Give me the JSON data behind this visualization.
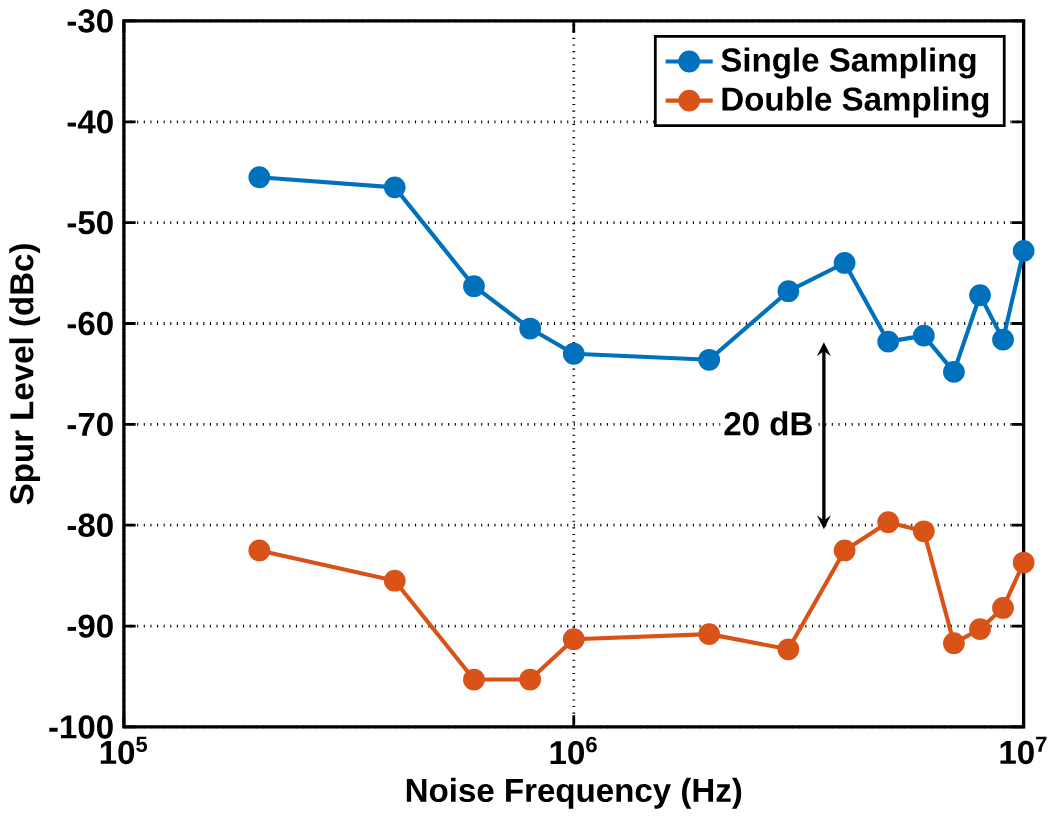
{
  "chart_data": {
    "type": "line",
    "xlabel": "Noise Frequency (Hz)",
    "ylabel": "Spur Level (dBc)",
    "log": "x",
    "x": [
      200000,
      400000,
      600000,
      800000,
      1000000,
      2000000,
      3000000,
      4000000,
      5000000,
      6000000,
      7000000,
      8000000,
      9000000,
      10000000
    ],
    "series": [
      {
        "name": "Single Sampling",
        "color": "#0072bd",
        "values": [
          -45.5,
          -46.5,
          -56.3,
          -60.5,
          -63,
          -63.6,
          -56.8,
          -54,
          -61.8,
          -61.2,
          -64.8,
          -57.2,
          -61.6,
          -52.8
        ]
      },
      {
        "name": "Double Sampling",
        "color": "#d95319",
        "values": [
          -82.5,
          -85.5,
          -95.3,
          -95.3,
          -91.3,
          -90.8,
          -92.3,
          -82.5,
          -79.7,
          -80.6,
          -91.7,
          -90.3,
          -88.2,
          -83.7
        ]
      }
    ],
    "xlim": [
      100000,
      10000000
    ],
    "xticks": [
      {
        "value": 100000,
        "label": "10$^{5}$"
      },
      {
        "value": 1000000,
        "label": "10$^{6}$"
      },
      {
        "value": 10000000,
        "label": "10$^{7}$"
      }
    ],
    "ylim": [
      -100,
      -30
    ],
    "yticks": [
      -100,
      -90,
      -80,
      -70,
      -60,
      -50,
      -40,
      -30
    ],
    "grid": true,
    "legend": "top right",
    "marker": "circle",
    "line_style": "solid",
    "annotations": [
      "20 dB"
    ]
  }
}
